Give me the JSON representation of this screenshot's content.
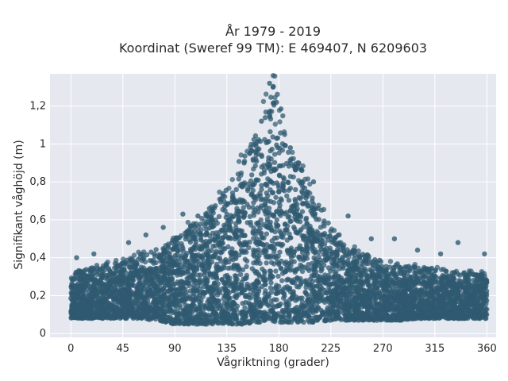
{
  "chart_data": {
    "type": "scatter",
    "title_lines": [
      "År 1979 - 2019",
      "Koordinat (Sweref 99 TM): E 469407, N 6209603"
    ],
    "xlabel": "Vågriktning (grader)",
    "ylabel": "Signifikant våghöjd (m)",
    "xlim": [
      -18,
      368
    ],
    "ylim": [
      -0.02,
      1.37
    ],
    "x_ticks": [
      0,
      45,
      90,
      135,
      180,
      225,
      270,
      315,
      360
    ],
    "x_tick_labels": [
      "0",
      "45",
      "90",
      "135",
      "180",
      "225",
      "270",
      "315",
      "360"
    ],
    "y_ticks": [
      0,
      0.2,
      0.4,
      0.6,
      0.8,
      1.0,
      1.2
    ],
    "y_tick_labels": [
      "0",
      "0,2",
      "0,4",
      "0,6",
      "0,8",
      "1",
      "1,2"
    ],
    "grid": true,
    "legend": "none",
    "colors": {
      "marker": "#2f5a70",
      "plot_background": "#e5e8ef",
      "grid": "#ffffff"
    },
    "envelope": {
      "description_x": [
        0,
        15,
        30,
        45,
        60,
        75,
        90,
        105,
        120,
        135,
        150,
        160,
        170,
        175,
        180,
        190,
        200,
        210,
        225,
        240,
        255,
        270,
        285,
        300,
        315,
        330,
        345,
        360
      ],
      "upper_y": [
        0.32,
        0.35,
        0.37,
        0.38,
        0.42,
        0.45,
        0.5,
        0.58,
        0.66,
        0.76,
        0.93,
        1.08,
        1.22,
        1.32,
        1.25,
        1.02,
        0.86,
        0.72,
        0.58,
        0.47,
        0.42,
        0.38,
        0.36,
        0.35,
        0.34,
        0.33,
        0.32,
        0.31
      ],
      "lower_y": [
        0.08,
        0.08,
        0.08,
        0.08,
        0.08,
        0.07,
        0.05,
        0.05,
        0.05,
        0.05,
        0.05,
        0.06,
        0.06,
        0.06,
        0.06,
        0.06,
        0.06,
        0.06,
        0.07,
        0.07,
        0.07,
        0.07,
        0.07,
        0.08,
        0.08,
        0.08,
        0.08,
        0.08
      ]
    },
    "sample_points": [
      {
        "x": 172,
        "y": 1.32
      },
      {
        "x": 175,
        "y": 1.3
      },
      {
        "x": 178,
        "y": 1.22
      },
      {
        "x": 165,
        "y": 1.12
      },
      {
        "x": 185,
        "y": 1.05
      },
      {
        "x": 190,
        "y": 0.98
      },
      {
        "x": 160,
        "y": 1.0
      },
      {
        "x": 200,
        "y": 0.86
      },
      {
        "x": 210,
        "y": 0.8
      },
      {
        "x": 150,
        "y": 0.9
      },
      {
        "x": 140,
        "y": 0.72
      },
      {
        "x": 130,
        "y": 0.71
      },
      {
        "x": 120,
        "y": 0.66
      },
      {
        "x": 110,
        "y": 0.62
      },
      {
        "x": 97,
        "y": 0.63
      },
      {
        "x": 80,
        "y": 0.56
      },
      {
        "x": 65,
        "y": 0.52
      },
      {
        "x": 50,
        "y": 0.48
      },
      {
        "x": 240,
        "y": 0.62
      },
      {
        "x": 260,
        "y": 0.5
      },
      {
        "x": 280,
        "y": 0.5
      },
      {
        "x": 300,
        "y": 0.44
      },
      {
        "x": 320,
        "y": 0.42
      },
      {
        "x": 335,
        "y": 0.48
      },
      {
        "x": 358,
        "y": 0.42
      },
      {
        "x": 20,
        "y": 0.42
      },
      {
        "x": 5,
        "y": 0.4
      }
    ]
  }
}
